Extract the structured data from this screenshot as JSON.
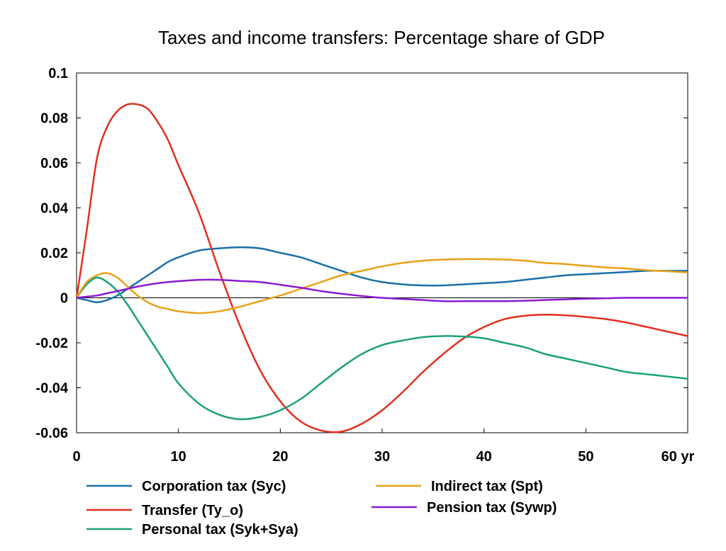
{
  "chart_data": {
    "type": "line",
    "title": "Taxes and income transfers: Percentage share of GDP",
    "xlabel": "",
    "ylabel": "",
    "xlim": [
      0,
      60
    ],
    "ylim": [
      -0.06,
      0.1
    ],
    "x_ticks": [
      "0",
      "10",
      "20",
      "30",
      "40",
      "50",
      "60 yr"
    ],
    "y_ticks": [
      "0.1",
      "0.08",
      "0.06",
      "0.04",
      "0.02",
      "0",
      "-0.02",
      "-0.04",
      "-0.06"
    ],
    "grid": false,
    "legend_position": "bottom",
    "x": [
      0,
      1,
      2,
      3,
      4,
      5,
      6,
      7,
      8,
      9,
      10,
      12,
      14,
      16,
      18,
      20,
      22,
      24,
      26,
      28,
      30,
      32,
      34,
      36,
      38,
      40,
      42,
      44,
      46,
      48,
      50,
      52,
      54,
      56,
      58,
      60
    ],
    "series": [
      {
        "name": "Corporation tax (Syc)",
        "color": "#1a6fa8",
        "values": [
          0,
          -0.001,
          -0.002,
          -0.001,
          0.001,
          0.004,
          0.007,
          0.01,
          0.013,
          0.016,
          0.018,
          0.021,
          0.022,
          0.0225,
          0.022,
          0.02,
          0.018,
          0.015,
          0.012,
          0.009,
          0.007,
          0.006,
          0.0055,
          0.0055,
          0.006,
          0.0065,
          0.007,
          0.008,
          0.009,
          0.01,
          0.0105,
          0.011,
          0.0115,
          0.012,
          0.012,
          0.012
        ]
      },
      {
        "name": "Transfer (Ty_o)",
        "color": "#e0301e",
        "values": [
          0,
          0.03,
          0.062,
          0.076,
          0.083,
          0.086,
          0.086,
          0.084,
          0.078,
          0.07,
          0.059,
          0.038,
          0.012,
          -0.012,
          -0.032,
          -0.046,
          -0.055,
          -0.059,
          -0.0595,
          -0.056,
          -0.05,
          -0.042,
          -0.033,
          -0.025,
          -0.018,
          -0.013,
          -0.0095,
          -0.008,
          -0.0075,
          -0.0078,
          -0.0085,
          -0.0095,
          -0.011,
          -0.013,
          -0.015,
          -0.017
        ]
      },
      {
        "name": "Personal tax (Syk+Sya)",
        "color": "#1aa07a",
        "values": [
          0,
          0.006,
          0.009,
          0.007,
          0.003,
          -0.003,
          -0.01,
          -0.017,
          -0.024,
          -0.031,
          -0.038,
          -0.047,
          -0.052,
          -0.054,
          -0.053,
          -0.05,
          -0.045,
          -0.038,
          -0.031,
          -0.025,
          -0.021,
          -0.019,
          -0.0175,
          -0.017,
          -0.0172,
          -0.018,
          -0.02,
          -0.022,
          -0.025,
          -0.027,
          -0.029,
          -0.031,
          -0.033,
          -0.034,
          -0.035,
          -0.036
        ]
      },
      {
        "name": "Indirect tax (Spt)",
        "color": "#e6a21a",
        "values": [
          0,
          0.007,
          0.01,
          0.011,
          0.009,
          0.005,
          0.001,
          -0.002,
          -0.004,
          -0.005,
          -0.006,
          -0.0068,
          -0.006,
          -0.004,
          -0.0015,
          0.001,
          0.004,
          0.007,
          0.01,
          0.012,
          0.014,
          0.0155,
          0.0165,
          0.017,
          0.0172,
          0.0172,
          0.017,
          0.0165,
          0.0155,
          0.015,
          0.0142,
          0.0135,
          0.013,
          0.0123,
          0.0118,
          0.0113
        ]
      },
      {
        "name": "Pension tax (Sywp)",
        "color": "#8a1ad0",
        "values": [
          0,
          0.0005,
          0.001,
          0.002,
          0.003,
          0.004,
          0.005,
          0.0058,
          0.0065,
          0.007,
          0.0074,
          0.008,
          0.008,
          0.0075,
          0.007,
          0.0058,
          0.0045,
          0.003,
          0.0018,
          0.0008,
          0,
          -0.0005,
          -0.001,
          -0.0015,
          -0.0015,
          -0.0015,
          -0.0015,
          -0.0013,
          -0.001,
          -0.0007,
          -0.0004,
          -0.0002,
          0,
          0,
          0,
          0
        ]
      }
    ]
  }
}
